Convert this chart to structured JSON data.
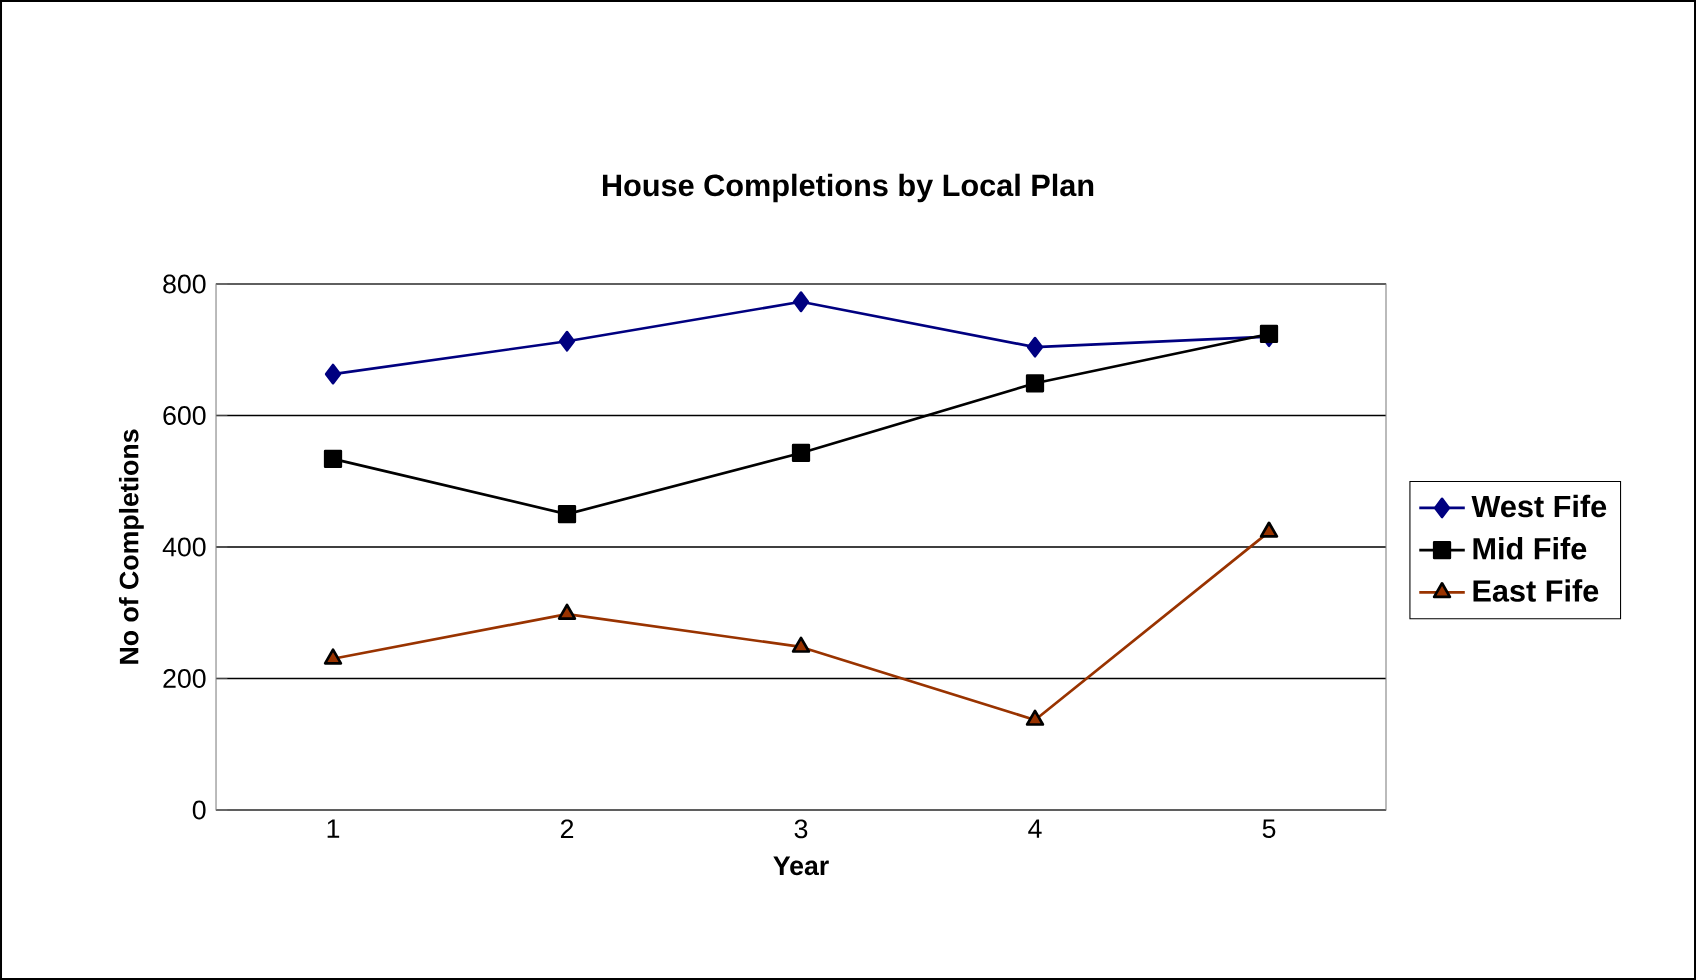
{
  "chart_data": {
    "type": "line",
    "title": "House Completions by Local Plan",
    "xlabel": "Year",
    "ylabel": "No of Completions",
    "categories": [
      "1",
      "2",
      "3",
      "4",
      "5"
    ],
    "series": [
      {
        "name": "West Fife",
        "color": "#000080",
        "marker": "diamond",
        "values": [
          663,
          713,
          773,
          704,
          720
        ]
      },
      {
        "name": "Mid Fife",
        "color": "#000000",
        "marker": "square",
        "values": [
          534,
          450,
          543,
          649,
          724
        ]
      },
      {
        "name": "East Fife",
        "color": "#993300",
        "marker": "triangle",
        "values": [
          230,
          298,
          248,
          137,
          423
        ]
      }
    ],
    "ylim": [
      0,
      800
    ],
    "yticks": [
      0,
      200,
      400,
      600,
      800
    ],
    "grid": "y",
    "legend": "right"
  }
}
